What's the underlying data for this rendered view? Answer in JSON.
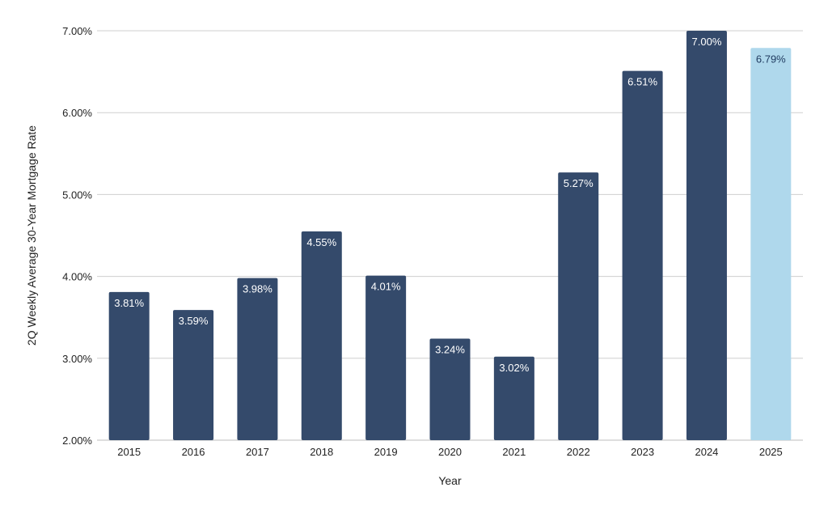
{
  "chart_data": {
    "type": "bar",
    "title": "",
    "xlabel": "Year",
    "ylabel": "2Q Weekly Average 30-Year Mortgage Rate",
    "categories": [
      "2015",
      "2016",
      "2017",
      "2018",
      "2019",
      "2020",
      "2021",
      "2022",
      "2023",
      "2024",
      "2025"
    ],
    "values": [
      3.81,
      3.59,
      3.98,
      4.55,
      4.01,
      3.24,
      3.02,
      5.27,
      6.51,
      7.0,
      6.79
    ],
    "data_labels": [
      "3.81%",
      "3.59%",
      "3.98%",
      "4.55%",
      "4.01%",
      "3.24%",
      "3.02%",
      "5.27%",
      "6.51%",
      "7.00%",
      "6.79%"
    ],
    "ylim": [
      2,
      7
    ],
    "y_ticks": [
      2,
      3,
      4,
      5,
      6,
      7
    ],
    "y_tick_labels": [
      "2.00%",
      "3.00%",
      "4.00%",
      "5.00%",
      "6.00%",
      "7.00%"
    ],
    "grid": true,
    "colors": {
      "bar": "#344a6b",
      "highlight_bar": "#afd8ec",
      "label_on_dark": "#ffffff",
      "label_on_light": "#1f3a5f"
    },
    "highlight_categories": [
      "2025"
    ]
  }
}
